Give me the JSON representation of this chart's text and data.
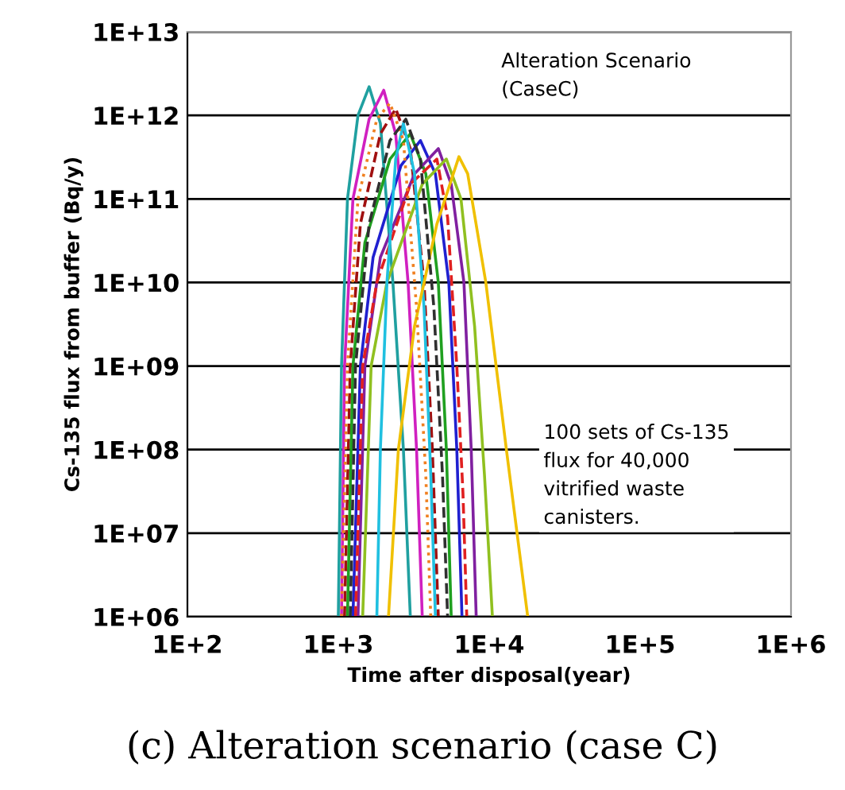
{
  "chart_data": {
    "type": "line",
    "xlabel": "Time after disposal(year)",
    "ylabel": "Cs-135 flux from buffer (Bq/y)",
    "log": "xy",
    "grid": "y",
    "legend": false,
    "xlim": [
      100,
      1000000
    ],
    "ylim": [
      1000000,
      10000000000000
    ],
    "xticks": [
      {
        "value": 100,
        "label": "1E+2"
      },
      {
        "value": 1000,
        "label": "1E+3"
      },
      {
        "value": 10000,
        "label": "1E+4"
      },
      {
        "value": 100000,
        "label": "1E+5"
      },
      {
        "value": 1000000,
        "label": "1E+6"
      }
    ],
    "yticks": [
      {
        "value": 1000000,
        "label": "1E+06"
      },
      {
        "value": 10000000,
        "label": "1E+07"
      },
      {
        "value": 100000000,
        "label": "1E+08"
      },
      {
        "value": 1000000000,
        "label": "1E+09"
      },
      {
        "value": 10000000000,
        "label": "1E+10"
      },
      {
        "value": 100000000000,
        "label": "1E+11"
      },
      {
        "value": 1000000000000,
        "label": "1E+12"
      },
      {
        "value": 10000000000000,
        "label": "1E+13"
      }
    ],
    "series": [
      {
        "color": "#20a0a0",
        "x": [
          1000,
          1050,
          1150,
          1350,
          1600,
          1900,
          2300,
          2700,
          3000
        ],
        "values": [
          1000000,
          1000000000,
          100000000000,
          1000000000000,
          2200000000000,
          800000000000,
          10000000000,
          100000000,
          1000000
        ]
      },
      {
        "color": "#d020c0",
        "x": [
          1050,
          1100,
          1250,
          1600,
          2000,
          2400,
          2900,
          3300,
          3600
        ],
        "values": [
          1000000,
          1000000000,
          100000000000,
          900000000000,
          2000000000000,
          600000000000,
          10000000000,
          100000000,
          1000000
        ]
      },
      {
        "color": "#a01010",
        "line_style": "dashed",
        "x": [
          1100,
          1200,
          1400,
          1900,
          2400,
          3000,
          3700,
          4200,
          4600
        ],
        "values": [
          1000000,
          1000000000,
          50000000000,
          600000000000,
          1200000000000,
          400000000000,
          10000000000,
          100000000,
          1000000
        ]
      },
      {
        "color": "#20a020",
        "x": [
          1150,
          1250,
          1500,
          2200,
          3000,
          3800,
          4600,
          5200,
          5600
        ],
        "values": [
          1000000,
          1000000000,
          30000000000,
          300000000000,
          600000000000,
          200000000000,
          10000000000,
          100000000,
          1000000
        ]
      },
      {
        "color": "#2020d0",
        "x": [
          1250,
          1400,
          1700,
          2600,
          3500,
          4400,
          5400,
          6100,
          6600
        ],
        "values": [
          1000000,
          1000000000,
          20000000000,
          250000000000,
          500000000000,
          200000000000,
          10000000000,
          100000000,
          1000000
        ]
      },
      {
        "color": "#8020a0",
        "x": [
          1350,
          1500,
          1900,
          3200,
          4600,
          5600,
          6800,
          7600,
          8200
        ],
        "values": [
          1000000,
          1000000000,
          20000000000,
          200000000000,
          400000000000,
          150000000000,
          10000000000,
          100000000,
          1000000
        ]
      },
      {
        "color": "#e02020",
        "line_style": "dashed",
        "x": [
          1300,
          1450,
          1800,
          3000,
          4500,
          5300,
          6100,
          6700,
          7100
        ],
        "values": [
          1000000,
          1000000000,
          10000000000,
          150000000000,
          300000000000,
          60000000000,
          1000000000,
          30000000,
          1000000
        ]
      },
      {
        "color": "#90c020",
        "x": [
          1450,
          1650,
          2100,
          3600,
          5200,
          6500,
          8000,
          9300,
          10500
        ],
        "values": [
          1000000,
          1000000000,
          10000000000,
          150000000000,
          300000000000,
          100000000000,
          3000000000,
          50000000,
          1000000
        ]
      },
      {
        "color": "#20c0e0",
        "x": [
          1800,
          1900,
          2100,
          2400,
          2700,
          3200,
          3700,
          4100,
          4400
        ],
        "values": [
          1000000,
          100000000,
          10000000000,
          300000000000,
          800000000000,
          200000000000,
          5000000000,
          50000000,
          1000000
        ]
      },
      {
        "color": "#f0c000",
        "x": [
          2150,
          2500,
          3200,
          4500,
          6300,
          7200,
          9500,
          13000,
          18000
        ],
        "values": [
          1000000,
          100000000,
          3000000000,
          50000000000,
          320000000000,
          200000000000,
          10000000000,
          100000000,
          1000000
        ]
      },
      {
        "color": "#f08020",
        "line_style": "dotted",
        "x": [
          1050,
          1150,
          1350,
          1800,
          2200,
          2700,
          3300,
          3800,
          4100
        ],
        "values": [
          1000000,
          1000000000,
          100000000000,
          900000000000,
          1400000000000,
          500000000000,
          5000000000,
          50000000,
          1000000
        ]
      },
      {
        "color": "#303030",
        "line_style": "dashed",
        "x": [
          1200,
          1300,
          1600,
          2200,
          2800,
          3500,
          4300,
          4900,
          5300
        ],
        "values": [
          1000000,
          1000000000,
          50000000000,
          500000000000,
          900000000000,
          300000000000,
          5000000000,
          50000000,
          1000000
        ]
      }
    ],
    "annotations": [
      "Alteration Scenario\n(CaseC)",
      "100 sets of Cs-135\nflux for 40,000\nvitrified waste\ncanisters.",
      "(c) Alteration scenario (case C)"
    ]
  }
}
